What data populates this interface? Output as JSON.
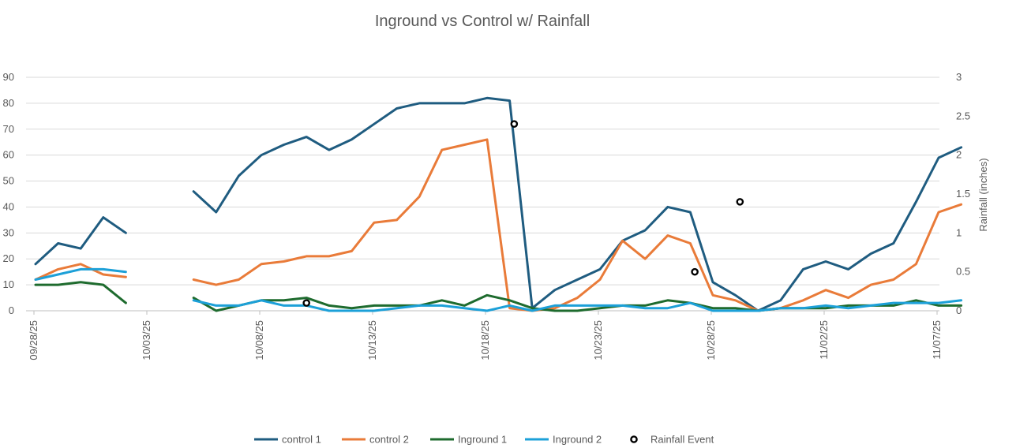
{
  "chart_data": {
    "type": "line",
    "title": "Inground vs Control w/ Rainfall",
    "xlabel": "",
    "ylabel": "",
    "y2label": "Rainfall (inches)",
    "ylim": [
      0,
      90
    ],
    "y2lim": [
      0,
      3
    ],
    "y_ticks": [
      "0",
      "10",
      "20",
      "30",
      "40",
      "50",
      "60",
      "70",
      "80",
      "90"
    ],
    "y2_ticks": [
      "0",
      "0.5",
      "1",
      "1.5",
      "2",
      "2.5",
      "3"
    ],
    "x_ticks": [
      "09/28/25",
      "10/03/25",
      "10/08/25",
      "10/13/25",
      "10/18/25",
      "10/23/25",
      "10/28/25",
      "11/02/25",
      "11/07/25"
    ],
    "x_tick_days": [
      0,
      5,
      10,
      15,
      20,
      25,
      30,
      35,
      40
    ],
    "x_domain_days": [
      0,
      40.3
    ],
    "series": [
      {
        "name": "control 1",
        "color": "#1f5c80",
        "values": [
          18,
          26,
          24,
          36,
          30,
          null,
          null,
          46,
          38,
          52,
          60,
          64,
          67,
          62,
          66,
          72,
          78,
          80,
          80,
          80,
          82,
          81,
          1,
          8,
          12,
          16,
          27,
          31,
          40,
          38,
          11,
          6,
          0,
          4,
          16,
          19,
          16,
          22,
          26,
          42,
          59,
          63
        ]
      },
      {
        "name": "control 2",
        "color": "#e97b39",
        "values": [
          12,
          16,
          18,
          14,
          13,
          null,
          null,
          12,
          10,
          12,
          18,
          19,
          21,
          21,
          23,
          34,
          35,
          44,
          62,
          64,
          66,
          1,
          0,
          1,
          5,
          12,
          27,
          20,
          29,
          26,
          6,
          4,
          0,
          1,
          4,
          8,
          5,
          10,
          12,
          18,
          38,
          41
        ]
      },
      {
        "name": "Inground 1",
        "color": "#1e6b2e",
        "values": [
          10,
          10,
          11,
          10,
          3,
          null,
          null,
          5,
          0,
          2,
          4,
          4,
          5,
          2,
          1,
          2,
          2,
          2,
          4,
          2,
          6,
          4,
          1,
          0,
          0,
          1,
          2,
          2,
          4,
          3,
          1,
          1,
          0,
          1,
          1,
          1,
          2,
          2,
          2,
          4,
          2,
          2
        ]
      },
      {
        "name": "Inground 2",
        "color": "#1ca0d8",
        "values": [
          12,
          14,
          16,
          16,
          15,
          null,
          null,
          4,
          2,
          2,
          4,
          2,
          2,
          0,
          0,
          0,
          1,
          2,
          2,
          1,
          0,
          2,
          0,
          2,
          2,
          2,
          2,
          1,
          1,
          3,
          0,
          0,
          0,
          1,
          1,
          2,
          1,
          2,
          3,
          3,
          3,
          4
        ]
      }
    ],
    "rainfall_events": [
      {
        "day": 12,
        "inches": 0.1
      },
      {
        "day": 21.2,
        "inches": 2.4
      },
      {
        "day": 29.2,
        "inches": 0.5
      },
      {
        "day": 31.2,
        "inches": 1.4
      }
    ],
    "legend": {
      "position": "bottom",
      "entries": [
        "control 1",
        "control 2",
        "Inground 1",
        "Inground 2",
        "Rainfall Event"
      ]
    },
    "grid": true
  }
}
